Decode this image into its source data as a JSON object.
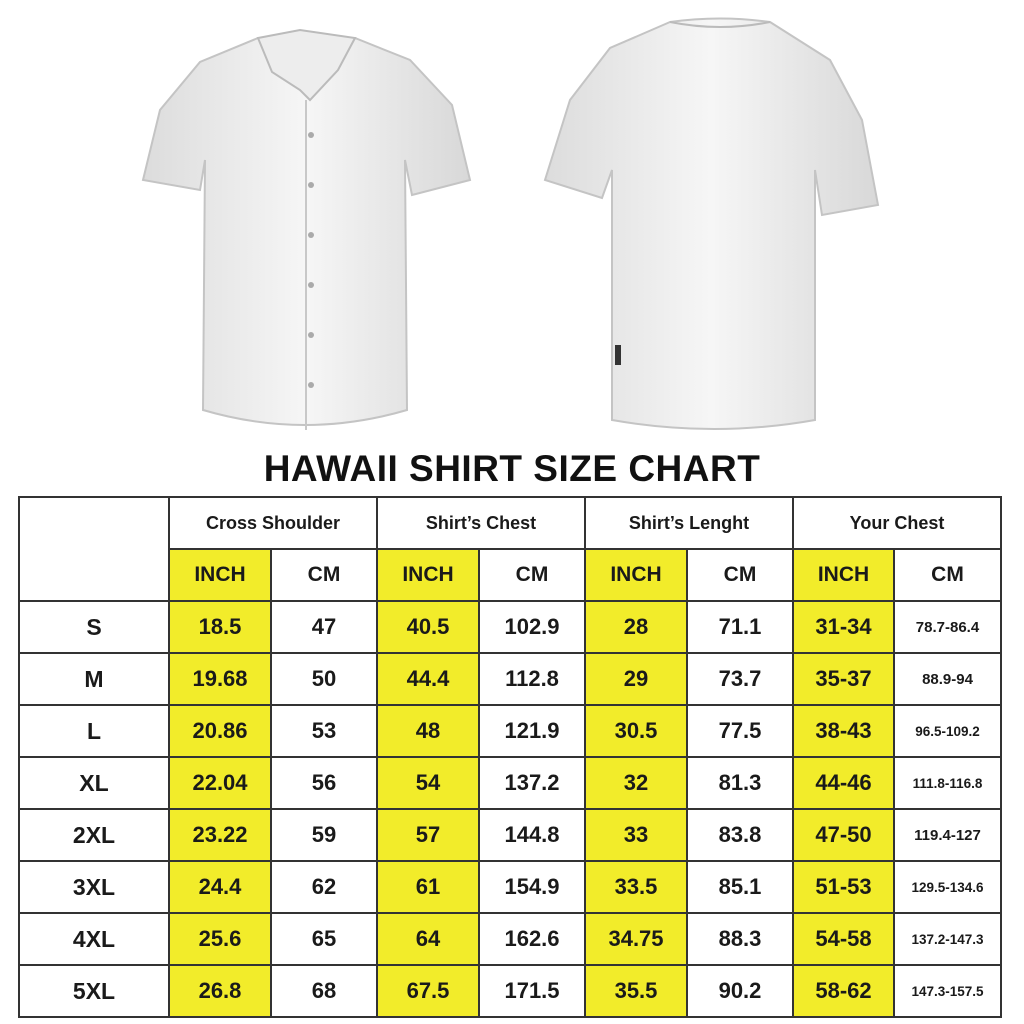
{
  "title": "HAWAII SHIRT SIZE CHART",
  "colors": {
    "highlight": "#f2ec2a",
    "border": "#333333"
  },
  "images": {
    "front": "white short-sleeve button-up shirt, front view",
    "back": "white short-sleeve shirt, back view"
  },
  "table": {
    "groups": [
      "Cross Shoulder",
      "Shirt’s Chest",
      "Shirt’s Lenght",
      "Your Chest"
    ],
    "units": [
      "INCH",
      "CM",
      "INCH",
      "CM",
      "INCH",
      "CM",
      "INCH",
      "CM"
    ],
    "rows": [
      {
        "size": "S",
        "values": [
          "18.5",
          "47",
          "40.5",
          "102.9",
          "28",
          "71.1",
          "31-34",
          "78.7-86.4"
        ]
      },
      {
        "size": "M",
        "values": [
          "19.68",
          "50",
          "44.4",
          "112.8",
          "29",
          "73.7",
          "35-37",
          "88.9-94"
        ]
      },
      {
        "size": "L",
        "values": [
          "20.86",
          "53",
          "48",
          "121.9",
          "30.5",
          "77.5",
          "38-43",
          "96.5-109.2"
        ]
      },
      {
        "size": "XL",
        "values": [
          "22.04",
          "56",
          "54",
          "137.2",
          "32",
          "81.3",
          "44-46",
          "111.8-116.8"
        ]
      },
      {
        "size": "2XL",
        "values": [
          "23.22",
          "59",
          "57",
          "144.8",
          "33",
          "83.8",
          "47-50",
          "119.4-127"
        ]
      },
      {
        "size": "3XL",
        "values": [
          "24.4",
          "62",
          "61",
          "154.9",
          "33.5",
          "85.1",
          "51-53",
          "129.5-134.6"
        ]
      },
      {
        "size": "4XL",
        "values": [
          "25.6",
          "65",
          "64",
          "162.6",
          "34.75",
          "88.3",
          "54-58",
          "137.2-147.3"
        ]
      },
      {
        "size": "5XL",
        "values": [
          "26.8",
          "68",
          "67.5",
          "171.5",
          "35.5",
          "90.2",
          "58-62",
          "147.3-157.5"
        ]
      }
    ]
  }
}
